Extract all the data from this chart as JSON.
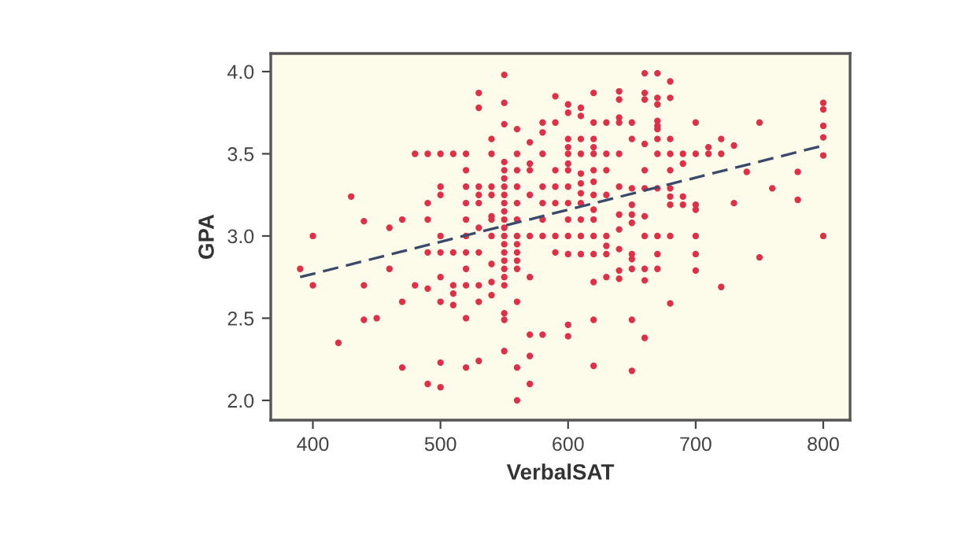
{
  "chart_data": {
    "type": "scatter",
    "xlabel": "VerbalSAT",
    "ylabel": "GPA",
    "xlim": [
      367,
      821
    ],
    "ylim": [
      1.88,
      4.11
    ],
    "xticks": [
      400,
      500,
      600,
      700,
      800
    ],
    "yticks": [
      {
        "value": 2,
        "label": "2.0"
      },
      {
        "value": 2.5,
        "label": "2.5"
      },
      {
        "value": 3,
        "label": "3.0"
      },
      {
        "value": 3.5,
        "label": "3.5"
      },
      {
        "value": 4,
        "label": "4.0"
      }
    ],
    "grid": false,
    "marker": "circle",
    "series": [
      {
        "color": "#e03048",
        "x": [
          390,
          400,
          400,
          430,
          420,
          440,
          440,
          440,
          450,
          460,
          460,
          470,
          470,
          470,
          480,
          480,
          490,
          490,
          490,
          490,
          490,
          490,
          500,
          500,
          500,
          500,
          500,
          500,
          500,
          500,
          500,
          510,
          510,
          510,
          510,
          510,
          520,
          520,
          520,
          520,
          520,
          520,
          520,
          520,
          520,
          520,
          520,
          530,
          530,
          530,
          530,
          530,
          530,
          530,
          530,
          530,
          530,
          540,
          540,
          540,
          540,
          540,
          540,
          540,
          540,
          540,
          540,
          550,
          550,
          550,
          550,
          550,
          550,
          550,
          550,
          550,
          550,
          550,
          550,
          550,
          550,
          550,
          550,
          550,
          550,
          550,
          550,
          550,
          550,
          560,
          560,
          560,
          560,
          560,
          560,
          560,
          560,
          560,
          560,
          560,
          560,
          560,
          560,
          570,
          570,
          570,
          570,
          570,
          570,
          570,
          570,
          570,
          580,
          580,
          580,
          580,
          580,
          580,
          580,
          580,
          590,
          590,
          590,
          590,
          590,
          590,
          590,
          600,
          600,
          600,
          600,
          600,
          600,
          600,
          600,
          600,
          600,
          600,
          600,
          600,
          600,
          610,
          610,
          610,
          610,
          610,
          610,
          610,
          610,
          610,
          610,
          610,
          620,
          620,
          620,
          620,
          620,
          620,
          620,
          620,
          620,
          620,
          620,
          620,
          620,
          620,
          620,
          630,
          630,
          630,
          630,
          630,
          630,
          630,
          630,
          640,
          640,
          640,
          640,
          640,
          640,
          640,
          640,
          640,
          640,
          640,
          650,
          650,
          650,
          650,
          650,
          650,
          650,
          650,
          650,
          650,
          650,
          660,
          660,
          660,
          660,
          660,
          660,
          660,
          660,
          660,
          660,
          660,
          670,
          670,
          670,
          670,
          670,
          670,
          670,
          670,
          670,
          670,
          670,
          670,
          680,
          680,
          680,
          680,
          680,
          680,
          680,
          680,
          680,
          680,
          690,
          690,
          690,
          690,
          700,
          700,
          700,
          700,
          700,
          700,
          700,
          710,
          710,
          720,
          720,
          720,
          730,
          730,
          740,
          750,
          750,
          760,
          780,
          780,
          800,
          800,
          800,
          800,
          800,
          800
        ],
        "values": [
          2.8,
          3.0,
          2.7,
          3.24,
          2.35,
          3.09,
          2.7,
          2.49,
          2.5,
          3.05,
          2.8,
          3.1,
          2.6,
          2.2,
          3.5,
          2.7,
          3.5,
          3.2,
          3.1,
          2.9,
          2.68,
          2.1,
          3.5,
          3.3,
          3.25,
          3.0,
          2.9,
          2.75,
          2.6,
          2.23,
          2.08,
          3.5,
          2.9,
          2.7,
          2.65,
          2.58,
          3.5,
          3.4,
          3.3,
          3.2,
          3.1,
          3.0,
          2.9,
          2.8,
          2.7,
          2.5,
          2.2,
          3.87,
          3.78,
          3.3,
          3.25,
          3.2,
          3.05,
          2.9,
          2.7,
          2.6,
          2.24,
          3.59,
          3.5,
          3.3,
          3.25,
          3.12,
          3.1,
          3.0,
          2.83,
          2.72,
          2.64,
          3.98,
          3.81,
          3.68,
          3.45,
          3.4,
          3.35,
          3.3,
          3.25,
          3.2,
          3.15,
          3.1,
          3.05,
          3.0,
          2.95,
          2.9,
          2.85,
          2.8,
          2.75,
          2.7,
          2.53,
          2.49,
          2.3,
          3.65,
          3.5,
          3.4,
          3.3,
          3.2,
          3.1,
          3.0,
          2.95,
          2.9,
          2.85,
          2.8,
          2.6,
          2.2,
          2.0,
          3.57,
          3.44,
          3.4,
          3.25,
          3.0,
          2.75,
          2.4,
          2.27,
          2.1,
          3.69,
          3.63,
          3.5,
          3.3,
          3.2,
          3.1,
          3.0,
          2.4,
          3.85,
          3.69,
          3.4,
          3.3,
          3.2,
          3.0,
          2.9,
          3.8,
          3.75,
          3.59,
          3.54,
          3.5,
          3.44,
          3.4,
          3.3,
          3.2,
          3.1,
          3.0,
          2.89,
          2.46,
          2.39,
          3.78,
          3.73,
          3.59,
          3.5,
          3.38,
          3.32,
          3.26,
          3.2,
          3.1,
          3.0,
          2.89,
          3.87,
          3.69,
          3.59,
          3.54,
          3.5,
          3.4,
          3.33,
          3.25,
          3.16,
          3.1,
          3.0,
          2.89,
          2.72,
          2.49,
          2.21,
          3.69,
          3.5,
          3.4,
          3.25,
          3.0,
          2.94,
          2.89,
          2.75,
          3.88,
          3.83,
          3.72,
          3.69,
          3.5,
          3.3,
          3.13,
          3.04,
          2.92,
          2.79,
          2.74,
          3.69,
          3.59,
          3.29,
          3.19,
          3.13,
          3.08,
          2.89,
          2.86,
          2.8,
          2.49,
          2.18,
          3.99,
          3.87,
          3.83,
          3.56,
          3.4,
          3.29,
          3.12,
          3.0,
          2.8,
          2.73,
          2.38,
          3.99,
          3.84,
          3.8,
          3.7,
          3.67,
          3.65,
          3.59,
          3.5,
          3.29,
          3.0,
          2.89,
          2.8,
          3.94,
          3.84,
          3.59,
          3.5,
          3.4,
          3.29,
          3.24,
          3.19,
          3.0,
          2.59,
          3.5,
          3.44,
          3.24,
          3.19,
          3.69,
          3.5,
          3.19,
          3.16,
          3.0,
          2.89,
          2.79,
          3.54,
          3.5,
          3.59,
          3.5,
          2.69,
          3.55,
          3.2,
          3.39,
          3.69,
          2.87,
          3.29,
          3.39,
          3.22,
          3.81,
          3.77,
          3.67,
          3.6,
          3.49,
          3.0
        ]
      },
      {
        "type": "line",
        "color": "#3a4a6a",
        "line_style": "dashed",
        "marker": "none",
        "x": [
          390,
          800
        ],
        "values": [
          2.75,
          3.55
        ]
      }
    ]
  }
}
